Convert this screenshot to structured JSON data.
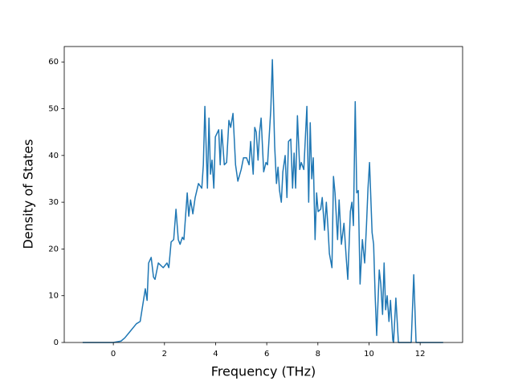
{
  "chart_data": {
    "type": "line",
    "xlabel": "Frequency (THz)",
    "ylabel": "Density of States",
    "color": "#1f77b4",
    "xlim": [
      -1.92,
      13.66
    ],
    "ylim": [
      0,
      63.3
    ],
    "xticks": [
      0,
      2,
      4,
      6,
      8,
      10,
      12
    ],
    "yticks": [
      0,
      10,
      20,
      30,
      40,
      50,
      60
    ],
    "grid": false,
    "x": [
      -1.2,
      -0.5,
      0.0,
      0.3,
      0.45,
      0.6,
      0.9,
      1.05,
      1.15,
      1.25,
      1.32,
      1.38,
      1.48,
      1.57,
      1.63,
      1.76,
      1.95,
      2.1,
      2.17,
      2.26,
      2.36,
      2.45,
      2.54,
      2.61,
      2.7,
      2.76,
      2.89,
      2.95,
      3.02,
      3.11,
      3.2,
      3.33,
      3.46,
      3.52,
      3.58,
      3.68,
      3.74,
      3.8,
      3.86,
      3.93,
      3.99,
      4.12,
      4.18,
      4.24,
      4.34,
      4.43,
      4.52,
      4.59,
      4.68,
      4.78,
      4.87,
      5.0,
      5.09,
      5.21,
      5.31,
      5.37,
      5.47,
      5.53,
      5.59,
      5.66,
      5.72,
      5.78,
      5.88,
      5.97,
      6.03,
      6.16,
      6.22,
      6.31,
      6.38,
      6.44,
      6.5,
      6.57,
      6.63,
      6.72,
      6.79,
      6.85,
      6.94,
      7.01,
      7.07,
      7.13,
      7.2,
      7.29,
      7.35,
      7.45,
      7.57,
      7.64,
      7.7,
      7.76,
      7.82,
      7.89,
      7.95,
      8.01,
      8.11,
      8.17,
      8.26,
      8.33,
      8.39,
      8.45,
      8.55,
      8.61,
      8.67,
      8.77,
      8.83,
      8.92,
      9.02,
      9.11,
      9.17,
      9.27,
      9.33,
      9.39,
      9.46,
      9.52,
      9.58,
      9.65,
      9.74,
      9.83,
      9.9,
      9.96,
      10.02,
      10.12,
      10.18,
      10.24,
      10.3,
      10.4,
      10.46,
      10.53,
      10.59,
      10.65,
      10.71,
      10.78,
      10.84,
      10.93,
      10.96,
      11.05,
      11.15,
      11.65,
      11.75,
      11.84,
      12.9
    ],
    "values": [
      0,
      0,
      0,
      0.3,
      1,
      2,
      4,
      4.5,
      8,
      11.5,
      9,
      17,
      18.2,
      14,
      13.5,
      17,
      16,
      17,
      16,
      21.5,
      22,
      28.5,
      22,
      21,
      22.5,
      22,
      32,
      27,
      30.5,
      27.5,
      31,
      34,
      33,
      38,
      50.5,
      33,
      48,
      36,
      39,
      33,
      44,
      45.5,
      38,
      45.5,
      38,
      38.5,
      47.5,
      46,
      49,
      38,
      34.5,
      37,
      39.5,
      39.5,
      38,
      43,
      36,
      46,
      45,
      39,
      45,
      48,
      36.5,
      38.5,
      38,
      50,
      60.5,
      42,
      34,
      37.5,
      32.5,
      30,
      36.5,
      40,
      31,
      43,
      43.5,
      33,
      40.5,
      33,
      48.5,
      37,
      38.5,
      37,
      50.5,
      30,
      47,
      35,
      39.5,
      22,
      32,
      28,
      28.5,
      31,
      24,
      30,
      25,
      19,
      16,
      35.5,
      32,
      22,
      30.5,
      21,
      25.5,
      18,
      13.5,
      28,
      30,
      25,
      51.5,
      32,
      32.5,
      12.5,
      22,
      17,
      25,
      33,
      38.5,
      23.5,
      21,
      10,
      1.5,
      15.5,
      12.5,
      6,
      17,
      7,
      10,
      4.5,
      9,
      0.5,
      0,
      9.5,
      0,
      0,
      14.5,
      0,
      0
    ]
  }
}
